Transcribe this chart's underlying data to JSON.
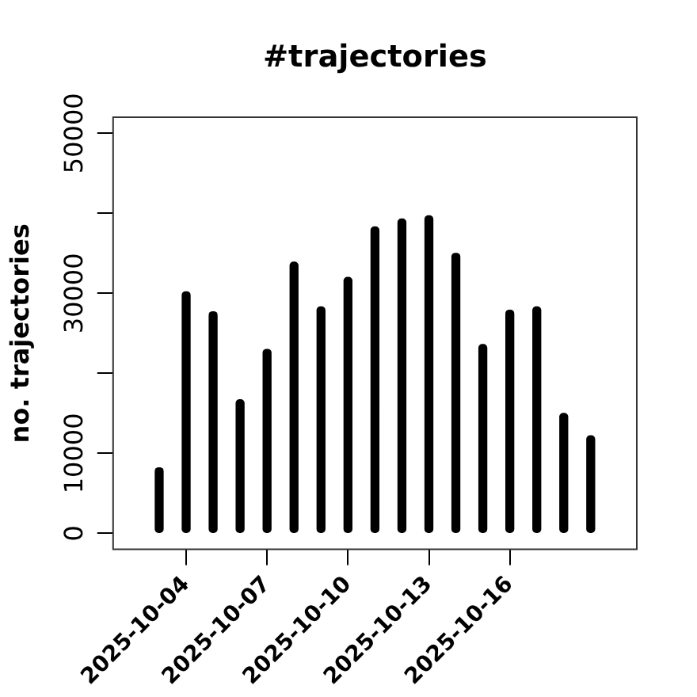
{
  "chart_data": {
    "type": "bar",
    "title": "#trajectories",
    "ylabel": "no. trajectories",
    "x": [
      "2025-10-03",
      "2025-10-04",
      "2025-10-05",
      "2025-10-06",
      "2025-10-07",
      "2025-10-08",
      "2025-10-09",
      "2025-10-10",
      "2025-10-11",
      "2025-10-12",
      "2025-10-13",
      "2025-10-14",
      "2025-10-15",
      "2025-10-16",
      "2025-10-17",
      "2025-10-18",
      "2025-10-19"
    ],
    "values": [
      8200,
      30200,
      27700,
      16700,
      23000,
      33900,
      28300,
      32000,
      38300,
      39300,
      39700,
      35000,
      23600,
      27900,
      28300,
      15000,
      12200
    ],
    "color": "#000000",
    "xlim": [
      "2025-10-01T07:00",
      "2025-10-20T17:00"
    ],
    "xticks": [
      "2025-10-04",
      "2025-10-07",
      "2025-10-10",
      "2025-10-13",
      "2025-10-16"
    ],
    "ylim": [
      -2000,
      52000
    ],
    "yticks": [
      0,
      10000,
      {
        "value": 20000,
        "label": null
      },
      30000,
      {
        "value": 40000,
        "label": null
      },
      50000
    ],
    "grid": false,
    "legend": false
  }
}
